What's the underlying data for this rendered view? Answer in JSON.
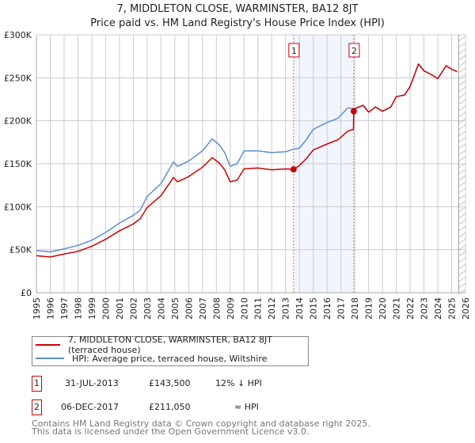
{
  "header": {
    "title": "7, MIDDLETON CLOSE, WARMINSTER, BA12 8JT",
    "subtitle": "Price paid vs. HM Land Registry's House Price Index (HPI)"
  },
  "chart_data": {
    "type": "line",
    "title": "7, MIDDLETON CLOSE, WARMINSTER, BA12 8JT",
    "subtitle": "Price paid vs. HM Land Registry's House Price Index (HPI)",
    "xlim": [
      1995,
      2026
    ],
    "ylim": [
      0,
      300000
    ],
    "x_ticks": [
      "1995",
      "1996",
      "1997",
      "1998",
      "1999",
      "2000",
      "2001",
      "2002",
      "2003",
      "2004",
      "2005",
      "2006",
      "2007",
      "2008",
      "2009",
      "2010",
      "2011",
      "2012",
      "2013",
      "2014",
      "2015",
      "2016",
      "2017",
      "2018",
      "2019",
      "2020",
      "2021",
      "2022",
      "2023",
      "2024",
      "2025",
      "2026"
    ],
    "y_ticks": [
      {
        "v": 0,
        "label": "£0"
      },
      {
        "v": 50000,
        "label": "£50K"
      },
      {
        "v": 100000,
        "label": "£100K"
      },
      {
        "v": 150000,
        "label": "£150K"
      },
      {
        "v": 200000,
        "label": "£200K"
      },
      {
        "v": 250000,
        "label": "£250K"
      },
      {
        "v": 300000,
        "label": "£300K"
      }
    ],
    "grid": true,
    "shaded_period": [
      2013.58,
      2017.93
    ],
    "forecast_hatch_from": 2025.5,
    "series": [
      {
        "name": "7, MIDDLETON CLOSE, WARMINSTER, BA12 8JT (terraced house)",
        "color": "#cc0000",
        "points": [
          [
            1995,
            43
          ],
          [
            1996,
            41.5
          ],
          [
            1997,
            45
          ],
          [
            1998,
            48
          ],
          [
            1999,
            54
          ],
          [
            2000,
            62
          ],
          [
            2001,
            72
          ],
          [
            2002,
            80
          ],
          [
            2002.5,
            86
          ],
          [
            2003,
            99
          ],
          [
            2004,
            113
          ],
          [
            2004.9,
            134
          ],
          [
            2005.2,
            129
          ],
          [
            2006,
            135
          ],
          [
            2007,
            146
          ],
          [
            2007.7,
            157
          ],
          [
            2008.2,
            151
          ],
          [
            2008.6,
            143
          ],
          [
            2009,
            129
          ],
          [
            2009.5,
            131
          ],
          [
            2010,
            144
          ],
          [
            2011,
            145
          ],
          [
            2012,
            143
          ],
          [
            2013,
            144
          ],
          [
            2013.58,
            143.5
          ],
          [
            2014,
            148
          ],
          [
            2014.5,
            156
          ],
          [
            2015,
            166
          ],
          [
            2016,
            173
          ],
          [
            2016.8,
            178
          ],
          [
            2017.5,
            188
          ],
          [
            2017.9,
            190
          ],
          [
            2017.93,
            211
          ],
          [
            2018,
            214
          ],
          [
            2018.6,
            218
          ],
          [
            2019,
            210
          ],
          [
            2019.5,
            216
          ],
          [
            2020,
            211
          ],
          [
            2020.6,
            216
          ],
          [
            2021,
            228
          ],
          [
            2021.6,
            230
          ],
          [
            2022,
            240
          ],
          [
            2022.6,
            266
          ],
          [
            2023,
            258
          ],
          [
            2023.5,
            254
          ],
          [
            2024,
            249
          ],
          [
            2024.6,
            264
          ],
          [
            2025,
            260
          ],
          [
            2025.4,
            257
          ]
        ]
      },
      {
        "name": "HPI: Average price, terraced house, Wiltshire",
        "color": "#5b8fd4",
        "points": [
          [
            1995,
            49
          ],
          [
            1996,
            47.5
          ],
          [
            1997,
            51
          ],
          [
            1998,
            55
          ],
          [
            1999,
            61
          ],
          [
            2000,
            70
          ],
          [
            2001,
            81
          ],
          [
            2002,
            90
          ],
          [
            2002.5,
            96
          ],
          [
            2003,
            112
          ],
          [
            2004,
            127
          ],
          [
            2004.9,
            152
          ],
          [
            2005.2,
            147
          ],
          [
            2006,
            153
          ],
          [
            2007,
            165
          ],
          [
            2007.7,
            179
          ],
          [
            2008.2,
            172
          ],
          [
            2008.6,
            163
          ],
          [
            2009,
            147
          ],
          [
            2009.5,
            150
          ],
          [
            2010,
            165
          ],
          [
            2011,
            165
          ],
          [
            2012,
            163
          ],
          [
            2013,
            164
          ],
          [
            2013.6,
            167
          ],
          [
            2014,
            168
          ],
          [
            2014.5,
            178
          ],
          [
            2015,
            190
          ],
          [
            2016,
            198
          ],
          [
            2016.8,
            203
          ],
          [
            2017.5,
            215
          ],
          [
            2018,
            214
          ],
          [
            2018.6,
            218
          ],
          [
            2019,
            210
          ],
          [
            2019.5,
            216
          ],
          [
            2020,
            211
          ],
          [
            2020.6,
            216
          ],
          [
            2021,
            228
          ],
          [
            2021.6,
            230
          ],
          [
            2022,
            240
          ],
          [
            2022.6,
            266
          ],
          [
            2023,
            258
          ],
          [
            2023.5,
            254
          ],
          [
            2024,
            249
          ],
          [
            2024.6,
            264
          ],
          [
            2025,
            260
          ],
          [
            2025.4,
            257
          ]
        ]
      }
    ],
    "y_units": "thousands GBP",
    "annotations": [
      {
        "id": "1",
        "x": 2013.58,
        "y": 143.5
      },
      {
        "id": "2",
        "x": 2017.93,
        "y": 211.05
      }
    ]
  },
  "legend": {
    "items": [
      {
        "label": "7, MIDDLETON CLOSE, WARMINSTER, BA12 8JT (terraced house)",
        "color": "#cc0000"
      },
      {
        "label": "HPI: Average price, terraced house, Wiltshire",
        "color": "#5b8fd4"
      }
    ]
  },
  "transactions": [
    {
      "id": "1",
      "date": "31-JUL-2013",
      "price": "£143,500",
      "hpi": "12% ↓ HPI"
    },
    {
      "id": "2",
      "date": "06-DEC-2017",
      "price": "£211,050",
      "hpi": "≈ HPI"
    }
  ],
  "footer": {
    "line1": "Contains HM Land Registry data © Crown copyright and database right 2025.",
    "line2": "This data is licensed under the Open Government Licence v3.0."
  }
}
